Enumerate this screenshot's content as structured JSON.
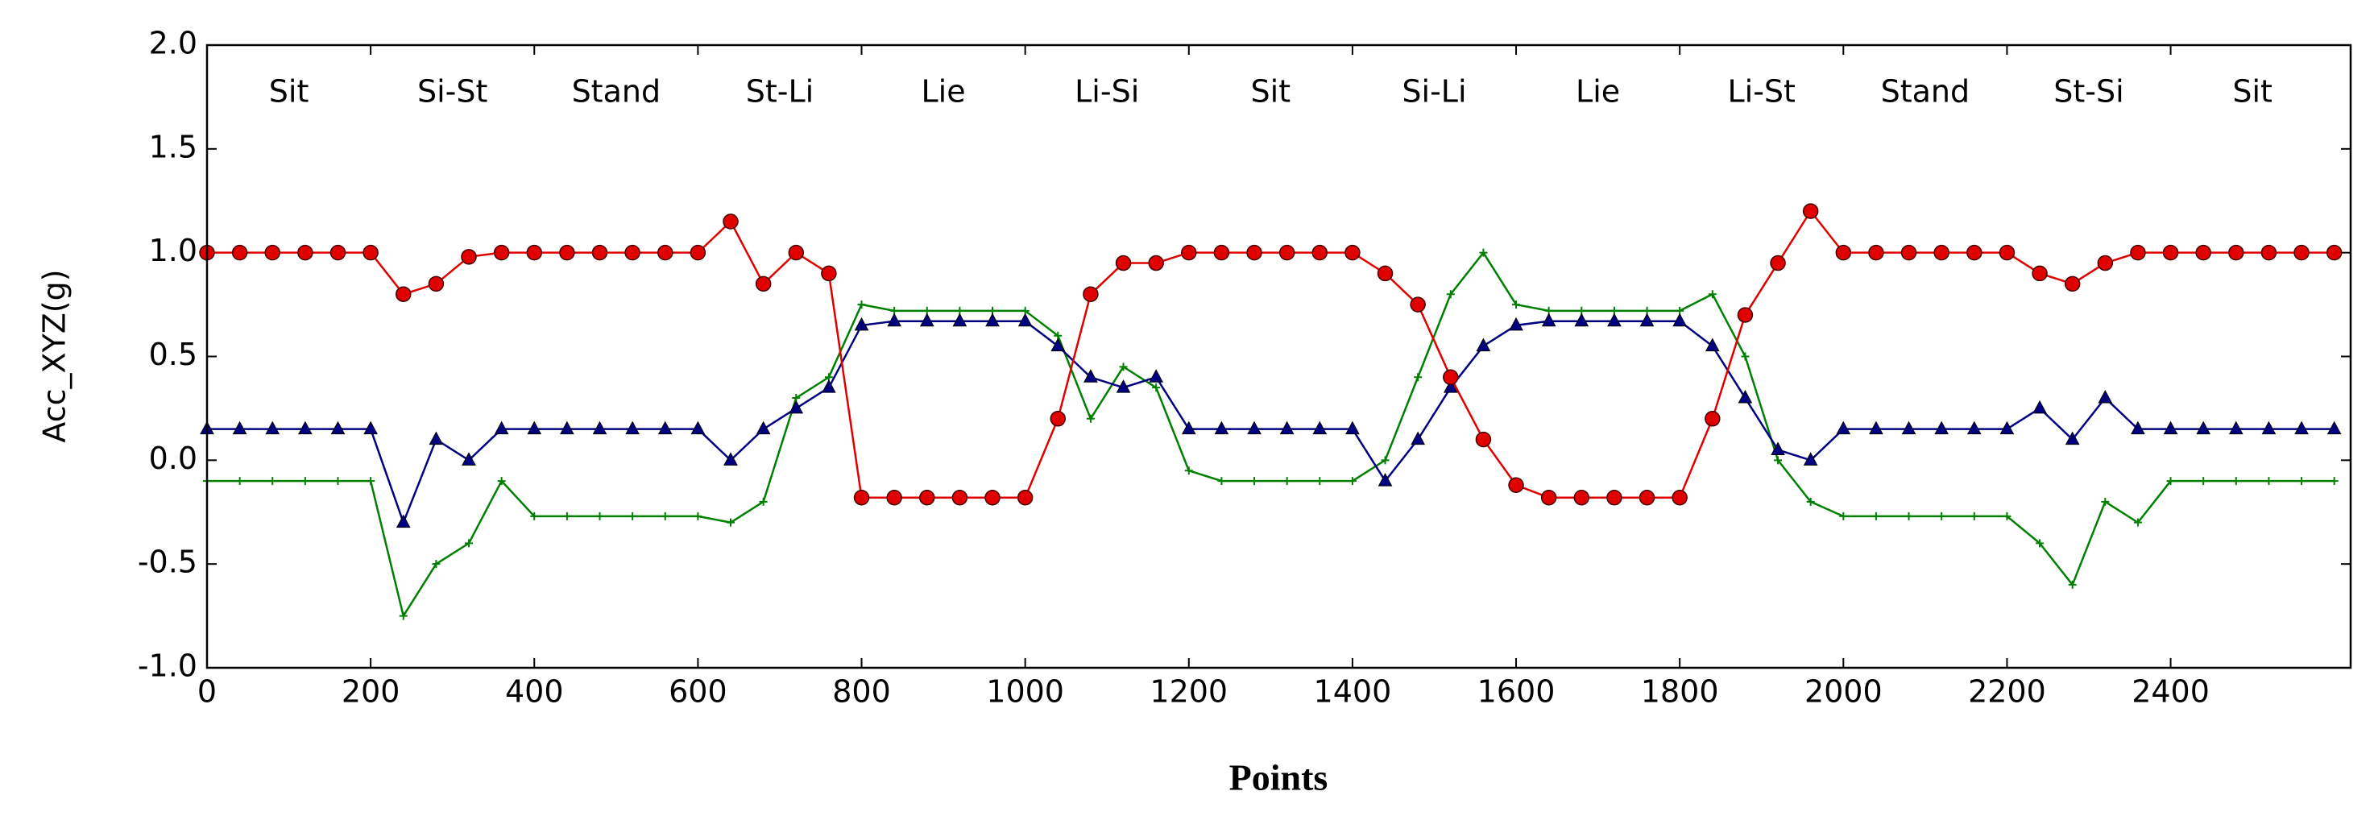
{
  "chart_data": {
    "type": "line",
    "ylabel": "Acc_XYZ(g)",
    "xlabel": "Points",
    "x": [
      0,
      40,
      80,
      120,
      160,
      200,
      240,
      280,
      320,
      360,
      400,
      440,
      480,
      520,
      560,
      600,
      640,
      680,
      720,
      760,
      800,
      840,
      880,
      920,
      960,
      1000,
      1040,
      1080,
      1120,
      1160,
      1200,
      1240,
      1280,
      1320,
      1360,
      1400,
      1440,
      1480,
      1520,
      1560,
      1600,
      1640,
      1680,
      1720,
      1760,
      1800,
      1840,
      1880,
      1920,
      1960,
      2000,
      2040,
      2080,
      2120,
      2160,
      2200,
      2240,
      2280,
      2320,
      2360,
      2400,
      2440,
      2480,
      2520,
      2560,
      2600
    ],
    "series": [
      {
        "color": "#008000",
        "marker": "plus",
        "values": [
          -0.1,
          -0.1,
          -0.1,
          -0.1,
          -0.1,
          -0.1,
          -0.75,
          -0.5,
          -0.4,
          -0.1,
          -0.27,
          -0.27,
          -0.27,
          -0.27,
          -0.27,
          -0.27,
          -0.3,
          -0.2,
          0.3,
          0.4,
          0.75,
          0.72,
          0.72,
          0.72,
          0.72,
          0.72,
          0.6,
          0.2,
          0.45,
          0.35,
          -0.05,
          -0.1,
          -0.1,
          -0.1,
          -0.1,
          -0.1,
          0.0,
          0.4,
          0.8,
          1.0,
          0.75,
          0.72,
          0.72,
          0.72,
          0.72,
          0.72,
          0.8,
          0.5,
          0.0,
          -0.2,
          -0.27,
          -0.27,
          -0.27,
          -0.27,
          -0.27,
          -0.27,
          -0.4,
          -0.6,
          -0.2,
          -0.3,
          -0.1,
          -0.1,
          -0.1,
          -0.1,
          -0.1,
          -0.1
        ]
      },
      {
        "color": "#000080",
        "marker": "triangle",
        "values": [
          0.15,
          0.15,
          0.15,
          0.15,
          0.15,
          0.15,
          -0.3,
          0.1,
          0.0,
          0.15,
          0.15,
          0.15,
          0.15,
          0.15,
          0.15,
          0.15,
          0.0,
          0.15,
          0.25,
          0.35,
          0.65,
          0.67,
          0.67,
          0.67,
          0.67,
          0.67,
          0.55,
          0.4,
          0.35,
          0.4,
          0.15,
          0.15,
          0.15,
          0.15,
          0.15,
          0.15,
          -0.1,
          0.1,
          0.35,
          0.55,
          0.65,
          0.67,
          0.67,
          0.67,
          0.67,
          0.67,
          0.55,
          0.3,
          0.05,
          0.0,
          0.15,
          0.15,
          0.15,
          0.15,
          0.15,
          0.15,
          0.25,
          0.1,
          0.3,
          0.15,
          0.15,
          0.15,
          0.15,
          0.15,
          0.15,
          0.15
        ]
      },
      {
        "color": "#e00000",
        "marker": "circle",
        "values": [
          1.0,
          1.0,
          1.0,
          1.0,
          1.0,
          1.0,
          0.8,
          0.85,
          0.98,
          1.0,
          1.0,
          1.0,
          1.0,
          1.0,
          1.0,
          1.0,
          1.15,
          0.85,
          1.0,
          0.9,
          -0.18,
          -0.18,
          -0.18,
          -0.18,
          -0.18,
          -0.18,
          0.2,
          0.8,
          0.95,
          0.95,
          1.0,
          1.0,
          1.0,
          1.0,
          1.0,
          1.0,
          0.9,
          0.75,
          0.4,
          0.1,
          -0.12,
          -0.18,
          -0.18,
          -0.18,
          -0.18,
          -0.18,
          0.2,
          0.7,
          0.95,
          1.2,
          1.0,
          1.0,
          1.0,
          1.0,
          1.0,
          1.0,
          0.9,
          0.85,
          0.95,
          1.0,
          1.0,
          1.0,
          1.0,
          1.0,
          1.0,
          1.0
        ]
      }
    ],
    "annotations": [
      {
        "text": "Sit",
        "x": 100
      },
      {
        "text": "Si-St",
        "x": 300
      },
      {
        "text": "Stand",
        "x": 500
      },
      {
        "text": "St-Li",
        "x": 700
      },
      {
        "text": "Lie",
        "x": 900
      },
      {
        "text": "Li-Si",
        "x": 1100
      },
      {
        "text": "Sit",
        "x": 1300
      },
      {
        "text": "Si-Li",
        "x": 1500
      },
      {
        "text": "Lie",
        "x": 1700
      },
      {
        "text": "Li-St",
        "x": 1900
      },
      {
        "text": "Stand",
        "x": 2100
      },
      {
        "text": "St-Si",
        "x": 2300
      },
      {
        "text": "Sit",
        "x": 2500
      }
    ],
    "xlim": [
      0,
      2620
    ],
    "xticks": [
      0,
      200,
      400,
      600,
      800,
      1000,
      1200,
      1400,
      1600,
      1800,
      2000,
      2200,
      2400
    ],
    "ylim": [
      -1,
      2
    ],
    "yticks": [
      {
        "value": -1,
        "label": "-1.0"
      },
      -0.5,
      {
        "value": 0,
        "label": "0.0"
      },
      0.5,
      {
        "value": 1,
        "label": "1.0"
      },
      1.5,
      {
        "value": 2,
        "label": "2.0"
      }
    ]
  }
}
